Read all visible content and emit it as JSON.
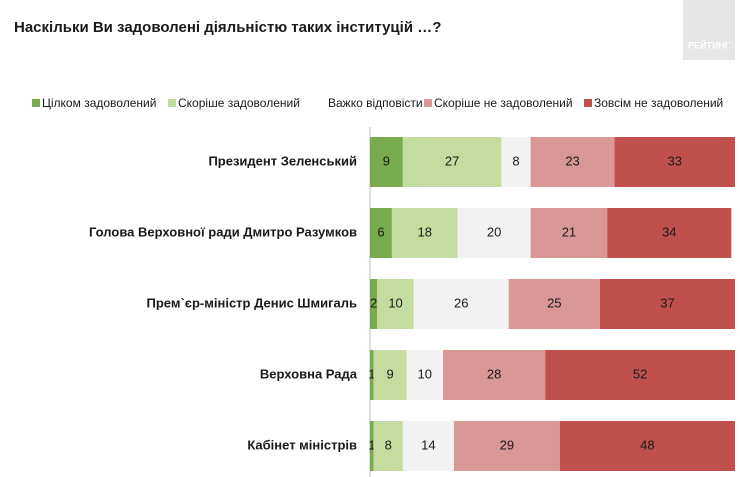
{
  "chart_data": {
    "type": "bar",
    "orientation": "horizontal",
    "stacked": true,
    "title": "Наскільки Ви задоволені діяльністю таких інституцій …?",
    "logo": "РЕЙТИНГ",
    "categories": [
      "Президент Зеленський",
      "Голова Верховної ради Дмитро Разумков",
      "Прем`єр-міністр Денис Шмигаль",
      "Верховна Рада",
      "Кабінет міністрів"
    ],
    "series": [
      {
        "name": "Цілком задоволений",
        "color": "#77ab4c",
        "values": [
          9,
          6,
          2,
          1,
          1
        ]
      },
      {
        "name": "Скоріше задоволений",
        "color": "#c5dca0",
        "values": [
          27,
          18,
          10,
          9,
          8
        ]
      },
      {
        "name": "Важко відповісти",
        "color": "#f2f2f2",
        "values": [
          8,
          20,
          26,
          10,
          14
        ]
      },
      {
        "name": "Скоріше не задоволений",
        "color": "#d99795",
        "values": [
          23,
          21,
          25,
          28,
          29
        ]
      },
      {
        "name": "Зовсім не задоволений",
        "color": "#c0504d",
        "values": [
          33,
          34,
          37,
          52,
          48
        ]
      }
    ],
    "xlim": [
      0,
      100
    ],
    "legend": "top"
  }
}
